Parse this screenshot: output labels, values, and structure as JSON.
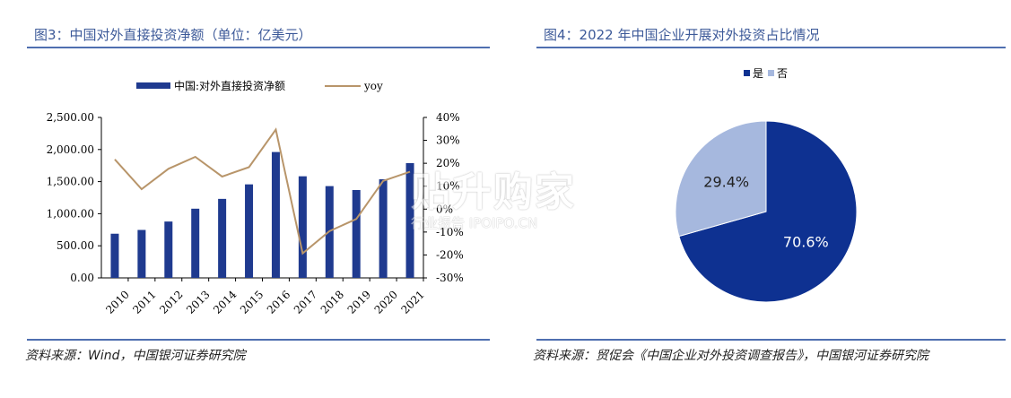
{
  "left": {
    "title": "图3：中国对外直接投资净额（单位：亿美元）",
    "source": "资料来源：Wind，中国银河证券研究院"
  },
  "right": {
    "title": "图4：2022 年中国企业开展对外投资占比情况",
    "source": "资料来源：贸促会《中国企业对外投资调查报告》，中国银河证券研究院"
  },
  "watermark": {
    "big": "贴升购家",
    "small": "行业报告 IPOIPO.CN"
  },
  "colors": {
    "bar": "#1f3a8f",
    "line": "#b8956a",
    "pie_yes": "#0e3191",
    "pie_no": "#a6b8de",
    "title": "#3d5a99"
  },
  "chart_data": [
    {
      "type": "bar",
      "categories": [
        "2010",
        "2011",
        "2012",
        "2013",
        "2014",
        "2015",
        "2016",
        "2017",
        "2018",
        "2019",
        "2020",
        "2021"
      ],
      "series": [
        {
          "name": "中国:对外直接投资净额",
          "type": "bar",
          "axis": "left",
          "values": [
            688,
            747,
            878,
            1078,
            1231,
            1457,
            1961,
            1583,
            1430,
            1369,
            1537,
            1788
          ]
        },
        {
          "name": "yoy",
          "type": "line",
          "axis": "right",
          "values": [
            21.7,
            8.7,
            17.6,
            22.8,
            14.2,
            18.3,
            34.7,
            -19.3,
            -9.6,
            -4.3,
            12.3,
            16.3
          ]
        }
      ],
      "y_left": {
        "ylim": [
          0,
          2500
        ],
        "ticks": [
          "0.00",
          "500.00",
          "1,000.00",
          "1,500.00",
          "2,000.00",
          "2,500.00"
        ]
      },
      "y_right": {
        "ylim": [
          -30,
          40
        ],
        "ticks": [
          "-30%",
          "-20%",
          "-10%",
          "0%",
          "10%",
          "20%",
          "30%",
          "40%"
        ]
      },
      "legend": "top"
    },
    {
      "type": "pie",
      "categories": [
        "是",
        "否"
      ],
      "values": [
        70.6,
        29.4
      ],
      "labels": [
        "70.6%",
        "29.4%"
      ],
      "legend": "top"
    }
  ]
}
